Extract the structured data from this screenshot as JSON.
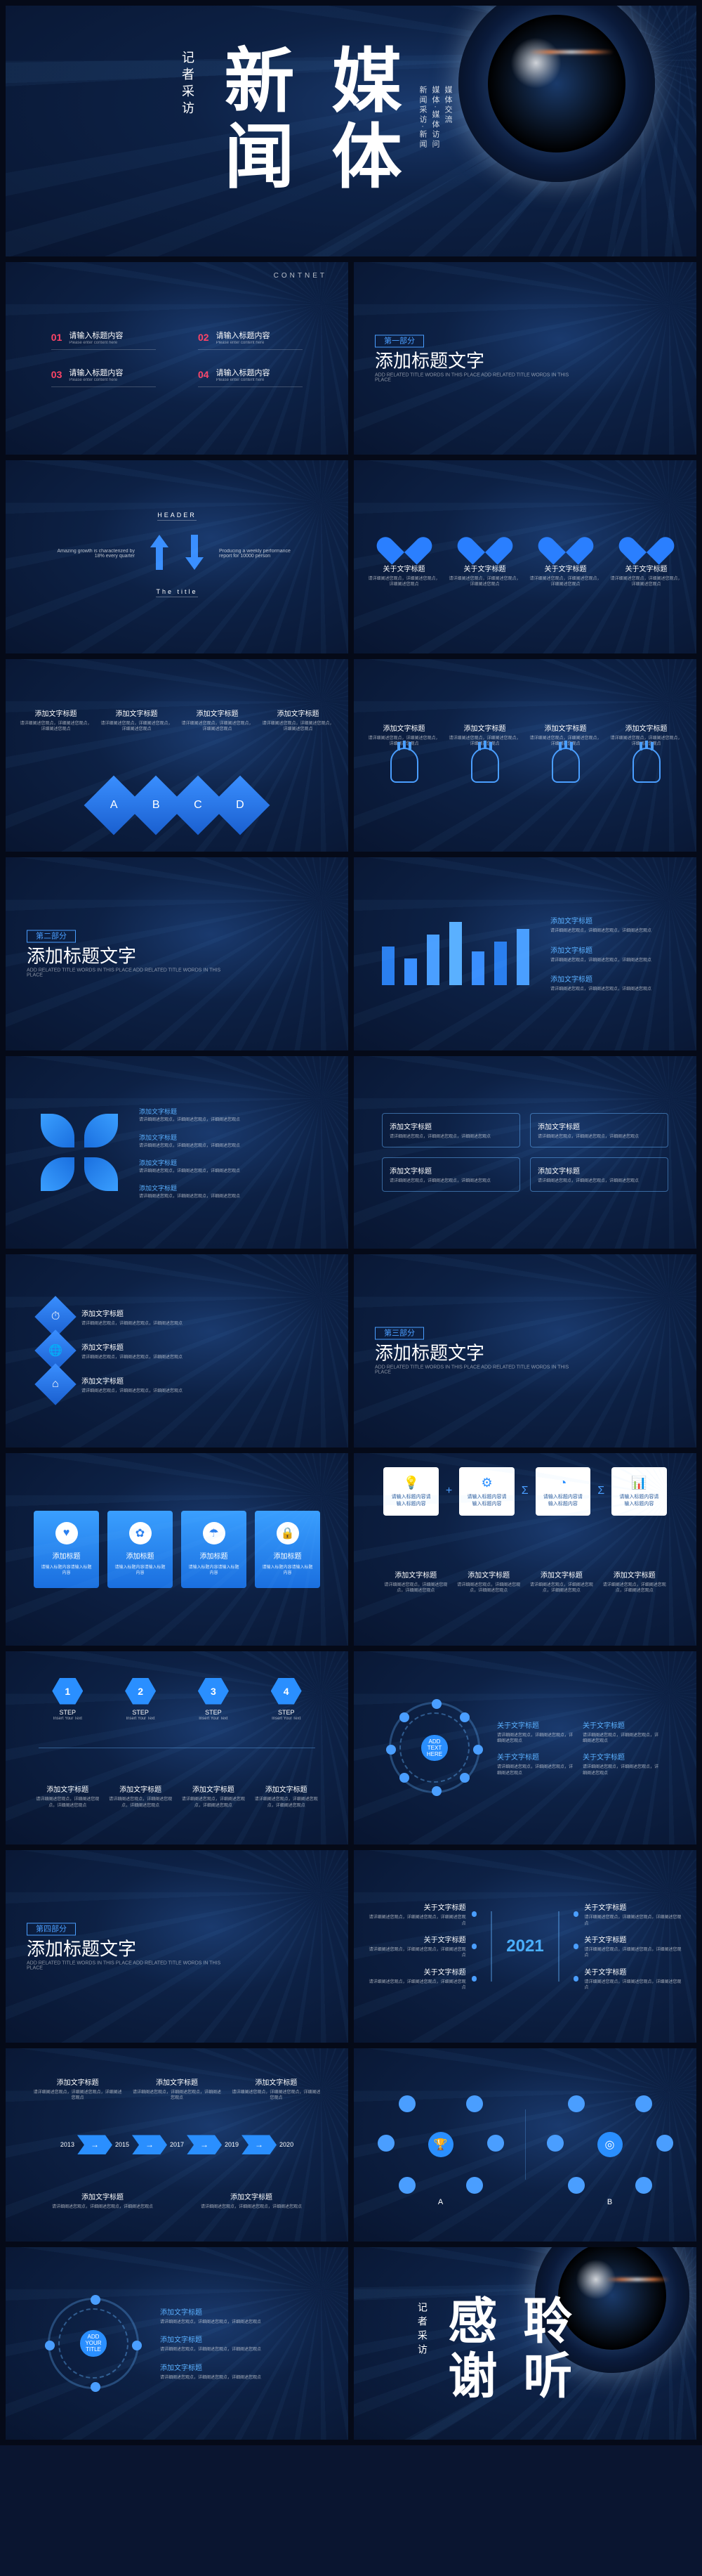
{
  "cover": {
    "big1": "新闻",
    "big2": "媒体",
    "sub": "记者采访",
    "lines": [
      "新闻采访·新闻",
      "媒体·媒体访问",
      "媒体交流"
    ]
  },
  "toc": {
    "contnet": "CONTNET",
    "items": [
      {
        "n": "01",
        "t": "请输入标题内容",
        "s": "Please enter content here"
      },
      {
        "n": "02",
        "t": "请输入标题内容",
        "s": "Please enter content here"
      },
      {
        "n": "03",
        "t": "请输入标题内容",
        "s": "Please enter content here"
      },
      {
        "n": "04",
        "t": "请输入标题内容",
        "s": "Please enter content here"
      }
    ]
  },
  "section": {
    "tag1": "第一部分",
    "tag2": "第二部分",
    "tag3": "第三部分",
    "tag4": "第四部分",
    "title": "添加标题文字",
    "sub": "ADD RELATED TITLE WORDS IN THIS PLACE ADD RELATED TITLE WORDS IN THIS PLACE"
  },
  "header": {
    "label": "HEADER",
    "title": "The title",
    "left": "Amazing growth is characterized by 18% every quarter",
    "right": "Producing a weekly performance report for 10000 person"
  },
  "card": {
    "title": "关于文字标题",
    "title2": "添加文字标题",
    "txt": "请详细阐述您观点，详细阐述您观点，详细阐述您观点",
    "txt2": "请输入标题内容请输入标题内容"
  },
  "labels": {
    "A": "A",
    "B": "B",
    "C": "C",
    "D": "D"
  },
  "bars": {
    "values": [
      55,
      38,
      72,
      90,
      48,
      62,
      80
    ],
    "colors": [
      "#2a7fef",
      "#3a8fff",
      "#4a9fff",
      "#5ab0ff",
      "#3a8fff",
      "#2a7fef",
      "#4a9fff"
    ]
  },
  "bluecard": {
    "title": "添加标题"
  },
  "steps": {
    "items": [
      {
        "n": "1",
        "t": "STEP"
      },
      {
        "n": "2",
        "t": "STEP"
      },
      {
        "n": "3",
        "t": "STEP"
      },
      {
        "n": "4",
        "t": "STEP"
      }
    ],
    "sub": "Insert Your Text"
  },
  "ring": {
    "center": "ADD TEXT HERE"
  },
  "timeline": {
    "year": "2021"
  },
  "arrows": {
    "years": [
      "2013",
      "2015",
      "2017",
      "2019",
      "2020"
    ]
  },
  "addtitle": "ADD YOUR TITLE",
  "thanks": {
    "big1": "感谢",
    "big2": "聆听",
    "sub": "记者采访"
  },
  "colors": {
    "accent": "#4a9eff",
    "dark": "#0a1530",
    "red": "#ff4466"
  }
}
